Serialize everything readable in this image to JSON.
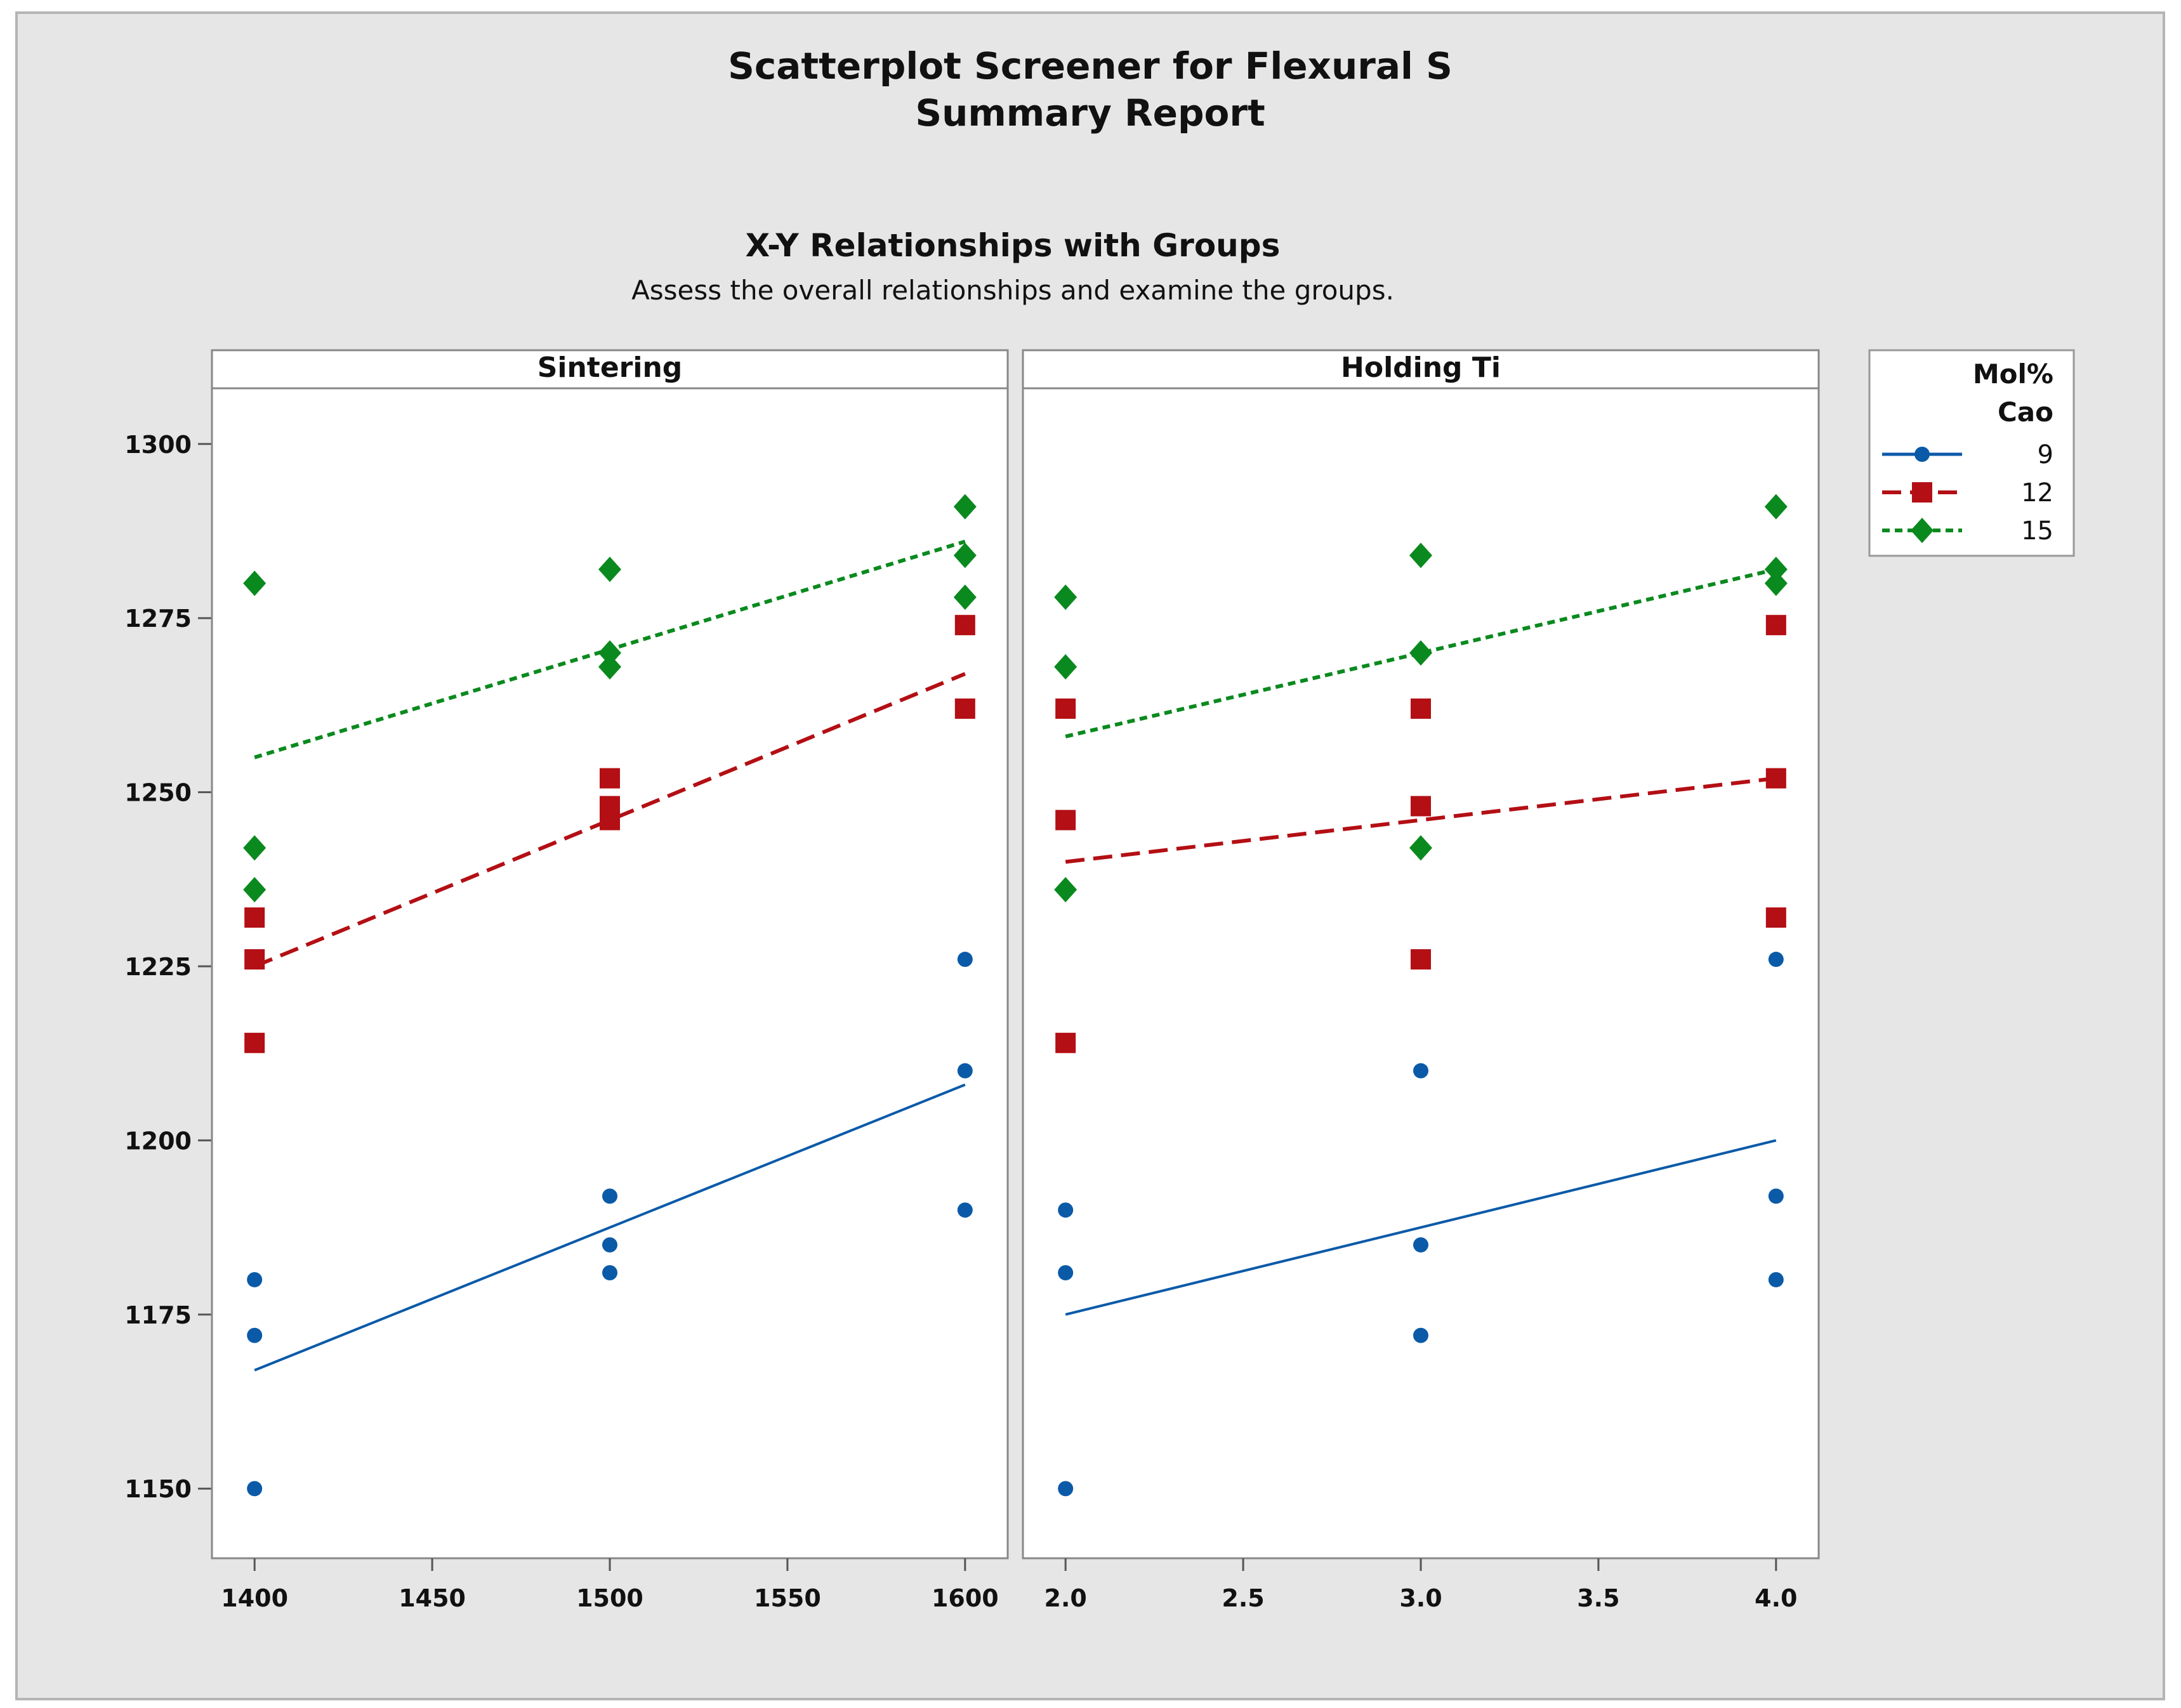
{
  "report": {
    "title": "Scatterplot Screener for Flexural S",
    "subtitle": "Summary Report",
    "section_title": "X-Y Relationships with Groups",
    "section_subtitle": "Assess the overall relationships and examine the groups."
  },
  "legend": {
    "title_line1": "Mol%",
    "title_line2": "Cao",
    "entries": [
      {
        "label": "9",
        "color": "#0b5aa8",
        "marker": "circle",
        "line": "solid"
      },
      {
        "label": "12",
        "color": "#b30f14",
        "marker": "square",
        "line": "dashed"
      },
      {
        "label": "15",
        "color": "#0a8a1e",
        "marker": "diamond",
        "line": "dotted"
      }
    ]
  },
  "chart_data": {
    "type": "scatter",
    "y_range": [
      1140,
      1308
    ],
    "y_ticks": [
      "1150",
      "1175",
      "1200",
      "1225",
      "1250",
      "1275",
      "1300"
    ],
    "panels": [
      {
        "title": "Sintering",
        "x_range": [
          1388,
          1612
        ],
        "x_ticks": [
          "1400",
          "1450",
          "1500",
          "1550",
          "1600"
        ],
        "series": [
          {
            "name": "9",
            "points": [
              [
                1400,
                1150
              ],
              [
                1400,
                1172
              ],
              [
                1400,
                1180
              ],
              [
                1500,
                1181
              ],
              [
                1500,
                1185
              ],
              [
                1500,
                1192
              ],
              [
                1600,
                1190
              ],
              [
                1600,
                1210
              ],
              [
                1600,
                1226
              ]
            ],
            "fit": [
              [
                1400,
                1167
              ],
              [
                1600,
                1208
              ]
            ]
          },
          {
            "name": "12",
            "points": [
              [
                1400,
                1214
              ],
              [
                1400,
                1226
              ],
              [
                1400,
                1232
              ],
              [
                1500,
                1246
              ],
              [
                1500,
                1248
              ],
              [
                1500,
                1252
              ],
              [
                1600,
                1262
              ],
              [
                1600,
                1274
              ]
            ],
            "fit": [
              [
                1400,
                1225
              ],
              [
                1600,
                1267
              ]
            ]
          },
          {
            "name": "15",
            "points": [
              [
                1400,
                1236
              ],
              [
                1400,
                1242
              ],
              [
                1400,
                1280
              ],
              [
                1500,
                1268
              ],
              [
                1500,
                1270
              ],
              [
                1500,
                1282
              ],
              [
                1600,
                1278
              ],
              [
                1600,
                1284
              ],
              [
                1600,
                1291
              ]
            ],
            "fit": [
              [
                1400,
                1255
              ],
              [
                1600,
                1286
              ]
            ]
          }
        ]
      },
      {
        "title": "Holding Ti",
        "x_range": [
          1.88,
          4.12
        ],
        "x_ticks": [
          "2.0",
          "2.5",
          "3.0",
          "3.5",
          "4.0"
        ],
        "series": [
          {
            "name": "9",
            "points": [
              [
                2,
                1150
              ],
              [
                2,
                1181
              ],
              [
                2,
                1190
              ],
              [
                3,
                1172
              ],
              [
                3,
                1185
              ],
              [
                3,
                1210
              ],
              [
                4,
                1180
              ],
              [
                4,
                1192
              ],
              [
                4,
                1226
              ]
            ],
            "fit": [
              [
                2,
                1175
              ],
              [
                4,
                1200
              ]
            ]
          },
          {
            "name": "12",
            "points": [
              [
                2,
                1214
              ],
              [
                2,
                1246
              ],
              [
                2,
                1262
              ],
              [
                3,
                1226
              ],
              [
                3,
                1248
              ],
              [
                3,
                1262
              ],
              [
                4,
                1232
              ],
              [
                4,
                1252
              ],
              [
                4,
                1274
              ]
            ],
            "fit": [
              [
                2,
                1240
              ],
              [
                4,
                1252
              ]
            ]
          },
          {
            "name": "15",
            "points": [
              [
                2,
                1236
              ],
              [
                2,
                1268
              ],
              [
                2,
                1278
              ],
              [
                3,
                1242
              ],
              [
                3,
                1270
              ],
              [
                3,
                1284
              ],
              [
                4,
                1280
              ],
              [
                4,
                1282
              ],
              [
                4,
                1291
              ]
            ],
            "fit": [
              [
                2,
                1258
              ],
              [
                4,
                1282
              ]
            ]
          }
        ]
      }
    ]
  }
}
